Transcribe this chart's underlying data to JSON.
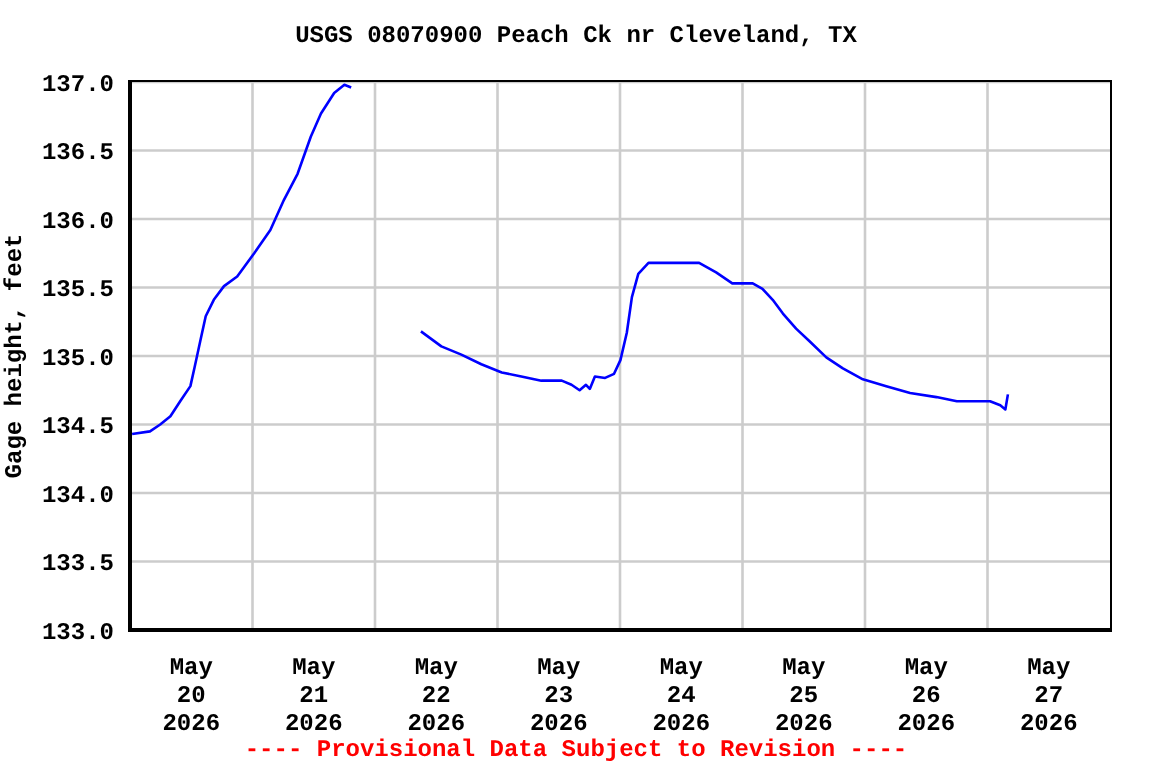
{
  "chart_data": {
    "type": "line",
    "title": "USGS 08070900 Peach Ck nr Cleveland, TX",
    "ylabel": "Gage height, feet",
    "annotations": [
      "---- Provisional Data Subject to Revision ----"
    ],
    "x": [
      "2026-05-20T00:25",
      "2026-05-20T03:55",
      "2026-05-20T05:55",
      "2026-05-20T07:55",
      "2026-05-20T09:50",
      "2026-05-20T11:50",
      "2026-05-20T12:40",
      "2026-05-20T13:50",
      "2026-05-20T14:50",
      "2026-05-20T16:25",
      "2026-05-20T18:25",
      "2026-05-20T21:00",
      "2026-05-21T00:20",
      "2026-05-21T03:30",
      "2026-05-21T06:10",
      "2026-05-21T08:50",
      "2026-05-21T11:25",
      "2026-05-21T13:25",
      "2026-05-21T16:00",
      "2026-05-21T18:00",
      "2026-05-21T19:20",
      "2026-05-22T00:00",
      "2026-05-22T09:00",
      "2026-05-22T13:00",
      "2026-05-22T16:55",
      "2026-05-22T20:50",
      "2026-05-23T00:50",
      "2026-05-23T04:40",
      "2026-05-23T08:35",
      "2026-05-23T12:35",
      "2026-05-23T14:30",
      "2026-05-23T16:05",
      "2026-05-23T17:20",
      "2026-05-23T18:05",
      "2026-05-23T19:05",
      "2026-05-23T21:05",
      "2026-05-23T22:50",
      "2026-05-24T00:05",
      "2026-05-24T01:20",
      "2026-05-24T02:20",
      "2026-05-24T03:35",
      "2026-05-24T05:35",
      "2026-05-24T09:30",
      "2026-05-24T15:30",
      "2026-05-24T18:50",
      "2026-05-24T22:00",
      "2026-05-25T02:00",
      "2026-05-25T03:55",
      "2026-05-25T05:55",
      "2026-05-25T07:55",
      "2026-05-25T10:30",
      "2026-05-25T13:05",
      "2026-05-25T16:25",
      "2026-05-25T19:40",
      "2026-05-25T23:35",
      "2026-05-26T04:10",
      "2026-05-26T08:50",
      "2026-05-26T14:00",
      "2026-05-26T18:00",
      "2026-05-27T00:30",
      "2026-05-27T02:30",
      "2026-05-27T03:30",
      "2026-05-27T04:00"
    ],
    "values": [
      134.43,
      134.45,
      134.5,
      134.56,
      134.67,
      134.78,
      134.92,
      135.12,
      135.29,
      135.41,
      135.51,
      135.58,
      135.75,
      135.92,
      136.14,
      136.33,
      136.6,
      136.77,
      136.92,
      136.98,
      136.96,
      null,
      135.18,
      135.07,
      135.01,
      134.94,
      134.88,
      134.85,
      134.82,
      134.82,
      134.79,
      134.75,
      134.79,
      134.76,
      134.85,
      134.84,
      134.87,
      134.97,
      135.17,
      135.43,
      135.6,
      135.68,
      135.68,
      135.68,
      135.61,
      135.53,
      135.53,
      135.49,
      135.41,
      135.31,
      135.2,
      135.11,
      134.99,
      134.91,
      134.83,
      134.78,
      134.73,
      134.7,
      134.67,
      134.67,
      134.64,
      134.61,
      134.72
    ],
    "color": "#0000ff",
    "line_style": "solid",
    "marker": "none",
    "xlim": [
      "2026-05-20T00:00",
      "2026-05-28T00:00"
    ],
    "xticks": [
      {
        "value": "2026-05-20T12:00",
        "label": "May\n20\n2026"
      },
      {
        "value": "2026-05-21T00:00",
        "label": null
      },
      {
        "value": "2026-05-21T12:00",
        "label": "May\n21\n2026"
      },
      {
        "value": "2026-05-22T00:00",
        "label": null
      },
      {
        "value": "2026-05-22T12:00",
        "label": "May\n22\n2026"
      },
      {
        "value": "2026-05-23T00:00",
        "label": null
      },
      {
        "value": "2026-05-23T12:00",
        "label": "May\n23\n2026"
      },
      {
        "value": "2026-05-24T00:00",
        "label": null
      },
      {
        "value": "2026-05-24T12:00",
        "label": "May\n24\n2026"
      },
      {
        "value": "2026-05-25T00:00",
        "label": null
      },
      {
        "value": "2026-05-25T12:00",
        "label": "May\n25\n2026"
      },
      {
        "value": "2026-05-26T00:00",
        "label": null
      },
      {
        "value": "2026-05-26T12:00",
        "label": "May\n26\n2026"
      },
      {
        "value": "2026-05-27T00:00",
        "label": null
      },
      {
        "value": "2026-05-27T12:00",
        "label": "May\n27\n2026"
      }
    ],
    "ylim": [
      133,
      137
    ],
    "yticks": [
      {
        "value": 133,
        "label": "133.0"
      },
      {
        "value": 133.5,
        "label": "133.5"
      },
      {
        "value": 134,
        "label": "134.0"
      },
      {
        "value": 134.5,
        "label": "134.5"
      },
      {
        "value": 135,
        "label": "135.0"
      },
      {
        "value": 135.5,
        "label": "135.5"
      },
      {
        "value": 136,
        "label": "136.0"
      },
      {
        "value": 136.5,
        "label": "136.5"
      },
      {
        "value": 137,
        "label": "137.0"
      }
    ],
    "grid": true,
    "legend": false
  }
}
